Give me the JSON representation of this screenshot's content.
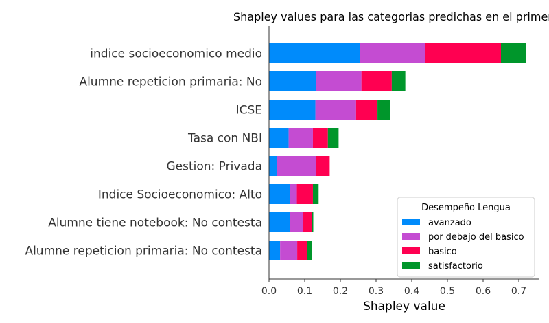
{
  "chart_data": {
    "type": "bar",
    "orientation": "horizontal",
    "stacked": true,
    "title": "Shapley values para las categorias predichas en el primer",
    "xlabel": "Shapley value",
    "ylabel": "",
    "xlim": [
      0,
      0.755
    ],
    "xticks": [
      "0.0",
      "0.1",
      "0.2",
      "0.3",
      "0.4",
      "0.5",
      "0.6",
      "0.7"
    ],
    "categories": [
      "indice socioeconomico medio",
      "Alumne repeticion primaria: No",
      "ICSE",
      "Tasa con NBI",
      "Gestion: Privada",
      "Indice Socioeconomico: Alto",
      "Alumne tiene notebook: No contesta",
      "Alumne repeticion primaria: No contesta"
    ],
    "series": [
      {
        "name": "avanzado",
        "color": "#008bfb",
        "values": [
          0.255,
          0.132,
          0.13,
          0.055,
          0.022,
          0.058,
          0.058,
          0.031
        ]
      },
      {
        "name": "por debajo del basico",
        "color": "#c44cd2",
        "values": [
          0.183,
          0.127,
          0.114,
          0.068,
          0.11,
          0.02,
          0.037,
          0.048
        ]
      },
      {
        "name": "basico",
        "color": "#ff0051",
        "values": [
          0.212,
          0.085,
          0.06,
          0.042,
          0.038,
          0.045,
          0.025,
          0.027
        ]
      },
      {
        "name": "satisfactorio",
        "color": "#00962b",
        "values": [
          0.07,
          0.038,
          0.036,
          0.03,
          0.0,
          0.016,
          0.004,
          0.014
        ]
      }
    ],
    "legend": {
      "title": "Desempeño Lengua",
      "position": "lower-right"
    }
  }
}
